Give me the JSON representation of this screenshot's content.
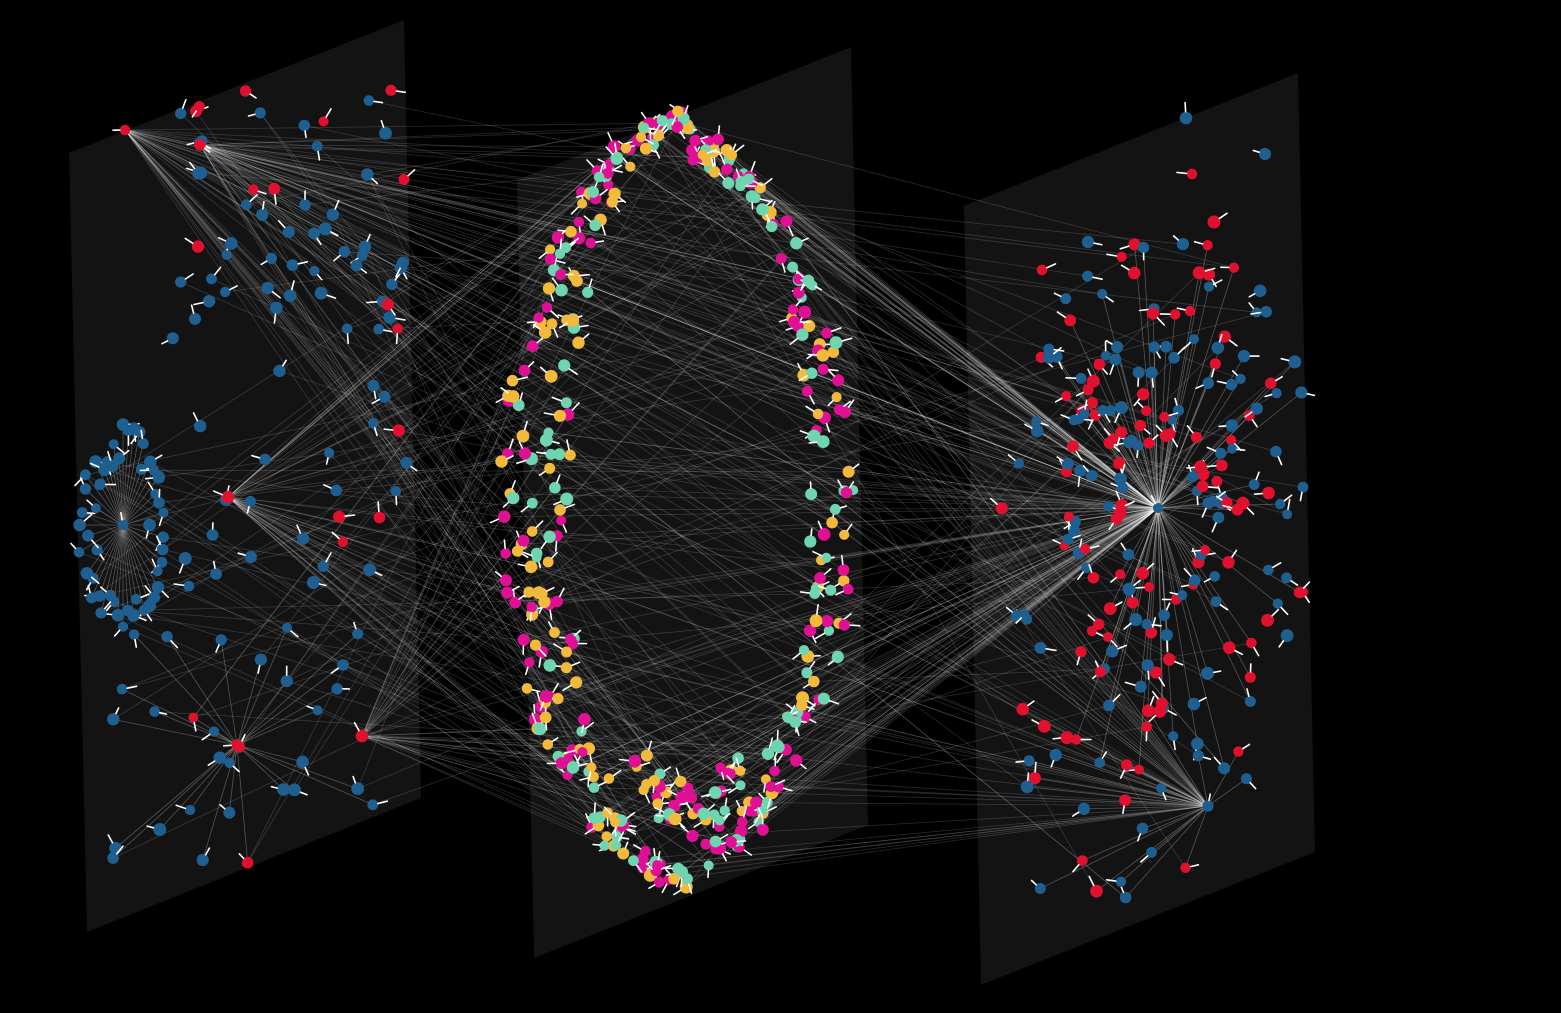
{
  "view": {
    "type": "3d-multilayer-network",
    "background_color": "#000000",
    "plane_color": "#131313",
    "edge_color": "#ffffff",
    "layer_count": 3
  },
  "layers": [
    {
      "id": "layer-1",
      "node_colors": [
        "#1f5f8f",
        "#e0102f"
      ],
      "layout": "clusters-and-star",
      "nodes_visible": 180
    },
    {
      "id": "layer-2",
      "node_colors": [
        "#f2b93b",
        "#6fd4b0",
        "#e01094"
      ],
      "layout": "double-ring",
      "nodes_visible": 420
    },
    {
      "id": "layer-3",
      "node_colors": [
        "#1f5f8f",
        "#e0102f"
      ],
      "layout": "hub-star",
      "nodes_visible": 260
    }
  ],
  "legend": []
}
